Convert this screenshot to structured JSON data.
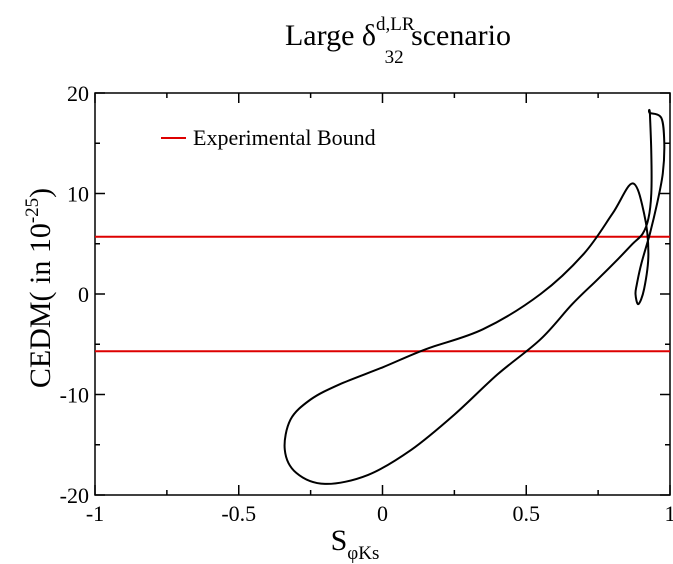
{
  "chart_data": {
    "type": "line",
    "title": {
      "prefix": "Large ",
      "symbol": "δ",
      "sup": "d,LR",
      "sub": "32",
      "suffix": " scenario"
    },
    "xlabel": {
      "main": "S",
      "sub": "φKs"
    },
    "ylabel": {
      "main": "CEDM( in 10",
      "sup": "-25",
      "suffix": ")"
    },
    "xlim": [
      -1,
      1
    ],
    "ylim": [
      -20,
      20
    ],
    "xticks": [
      -1,
      -0.5,
      0,
      0.5,
      1
    ],
    "xtick_labels": [
      "-1",
      "-0.5",
      "0",
      "0.5",
      "1"
    ],
    "yticks": [
      -20,
      -10,
      0,
      10,
      20
    ],
    "ytick_labels": [
      "-20",
      "-10",
      "0",
      "10",
      "20"
    ],
    "legend_position": "top-left",
    "colors": {
      "bound": "#dd0000",
      "curve": "#000000"
    },
    "series": [
      {
        "name": "Experimental Bound",
        "kind": "hline",
        "values": [
          5.7,
          -5.7
        ]
      },
      {
        "kind": "closed-curve",
        "x": [
          0.93,
          0.97,
          0.98,
          0.975,
          0.955,
          0.93,
          0.9,
          0.885,
          0.88,
          0.89,
          0.91,
          0.925,
          0.91,
          0.87,
          0.8,
          0.7,
          0.55,
          0.35,
          0.15,
          0.0,
          -0.15,
          -0.25,
          -0.32,
          -0.34,
          -0.3,
          -0.2,
          -0.05,
          0.1,
          0.25,
          0.4,
          0.55,
          0.66,
          0.75,
          0.82,
          0.87,
          0.905,
          0.925,
          0.935,
          0.935,
          0.93
        ],
        "y": [
          18.0,
          17.5,
          15.0,
          12.0,
          9.0,
          6.0,
          3.0,
          1.0,
          0.0,
          -1.0,
          0.5,
          4.0,
          8.0,
          11.0,
          8.0,
          4.0,
          0.0,
          -3.5,
          -5.5,
          -7.3,
          -9.0,
          -10.5,
          -12.5,
          -15.5,
          -17.8,
          -18.9,
          -18.0,
          -15.5,
          -12.0,
          -8.0,
          -4.5,
          -1.0,
          1.5,
          3.5,
          5.0,
          6.0,
          7.5,
          10.0,
          14.0,
          18.0
        ]
      }
    ]
  }
}
